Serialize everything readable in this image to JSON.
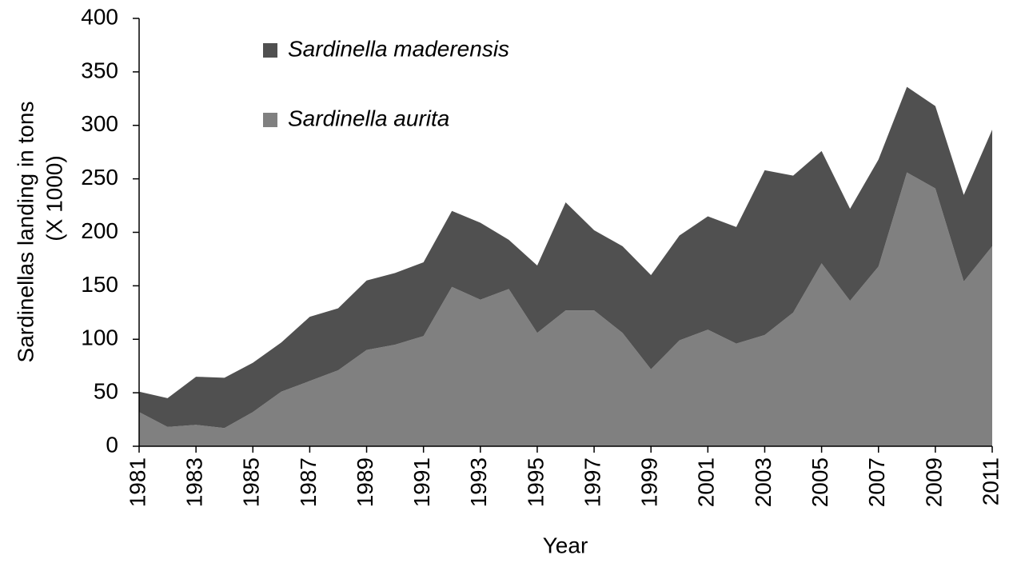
{
  "chart_data": {
    "type": "stacked_area",
    "y_label": [
      "Sardinellas landing  in tons",
      "(X 1000)"
    ],
    "x_label": "Year",
    "x": [
      1981,
      1982,
      1983,
      1984,
      1985,
      1986,
      1987,
      1988,
      1989,
      1990,
      1991,
      1992,
      1993,
      1994,
      1995,
      1996,
      1997,
      1998,
      1999,
      2000,
      2001,
      2002,
      2003,
      2004,
      2005,
      2006,
      2007,
      2008,
      2009,
      2010,
      2011
    ],
    "series": [
      {
        "name": "Sardinella maderensis",
        "color": "#505050",
        "values": [
          19,
          27,
          45,
          47,
          46,
          46,
          60,
          58,
          65,
          67,
          69,
          71,
          72,
          46,
          63,
          101,
          75,
          81,
          88,
          98,
          106,
          109,
          154,
          128,
          105,
          86,
          100,
          80,
          77,
          81,
          109
        ]
      },
      {
        "name": "Sardinella aurita",
        "color": "#808080",
        "values": [
          32,
          18,
          20,
          17,
          32,
          51,
          61,
          71,
          90,
          95,
          103,
          149,
          137,
          147,
          106,
          127,
          127,
          106,
          72,
          99,
          109,
          96,
          104,
          125,
          171,
          136,
          168,
          256,
          241,
          154,
          187
        ]
      }
    ],
    "stack_order": [
      "Sardinella aurita",
      "Sardinella maderensis"
    ],
    "xlim": [
      1981,
      2011
    ],
    "xticks": [
      1981,
      1983,
      1985,
      1987,
      1989,
      1991,
      1993,
      1995,
      1997,
      1999,
      2001,
      2003,
      2005,
      2007,
      2009,
      2011
    ],
    "ylim": [
      0,
      400
    ],
    "yticks": [
      0,
      50,
      100,
      150,
      200,
      250,
      300,
      350,
      400
    ]
  }
}
